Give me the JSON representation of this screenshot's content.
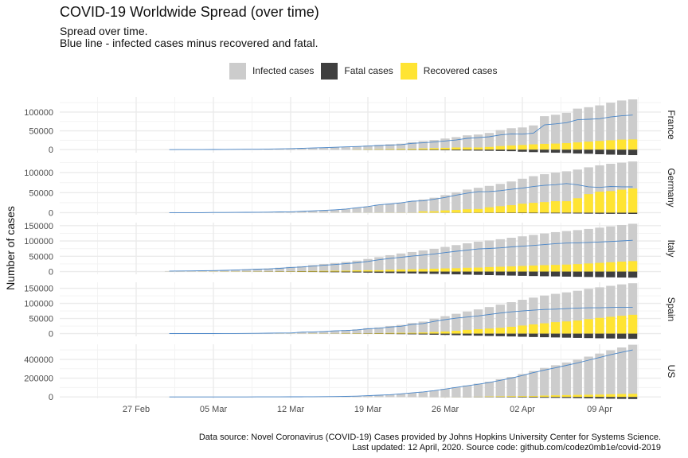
{
  "title": "COVID-19 Worldwide Spread (over time)",
  "subtitle_lines": [
    "Spread over time.",
    "Blue line - infected cases minus recovered and fatal."
  ],
  "caption_lines": [
    "Data source: Novel Coronavirus (COVID-19) Cases provided by Johns Hopkins University Center for Systems Science.",
    "Last updated: 12 April, 2020. Source code: github.com/codez0mb1e/covid-2019"
  ],
  "legend": [
    {
      "label": "Infected cases",
      "color": "#cccccc"
    },
    {
      "label": "Fatal cases",
      "color": "#3f3f3f"
    },
    {
      "label": "Recovered cases",
      "color": "#ffe433"
    }
  ],
  "colors": {
    "infected": "#cccccc",
    "fatal": "#3f3f3f",
    "recovered": "#ffe433",
    "active_line": "#4a86c8"
  },
  "chart_data": {
    "type": "bar",
    "ylabel": "Number of cases",
    "x_ticks": [
      "27 Feb",
      "05 Mar",
      "12 Mar",
      "19 Mar",
      "26 Mar",
      "02 Apr",
      "09 Apr"
    ],
    "x_tick_dates": [
      "2020-02-27",
      "2020-03-05",
      "2020-03-12",
      "2020-03-19",
      "2020-03-26",
      "2020-04-02",
      "2020-04-09"
    ],
    "dates": [
      "2020-03-01",
      "2020-03-02",
      "2020-03-03",
      "2020-03-04",
      "2020-03-05",
      "2020-03-06",
      "2020-03-07",
      "2020-03-08",
      "2020-03-09",
      "2020-03-10",
      "2020-03-11",
      "2020-03-12",
      "2020-03-13",
      "2020-03-14",
      "2020-03-15",
      "2020-03-16",
      "2020-03-17",
      "2020-03-18",
      "2020-03-19",
      "2020-03-20",
      "2020-03-21",
      "2020-03-22",
      "2020-03-23",
      "2020-03-24",
      "2020-03-25",
      "2020-03-26",
      "2020-03-27",
      "2020-03-28",
      "2020-03-29",
      "2020-03-30",
      "2020-03-31",
      "2020-04-01",
      "2020-04-02",
      "2020-04-03",
      "2020-04-04",
      "2020-04-05",
      "2020-04-06",
      "2020-04-07",
      "2020-04-08",
      "2020-04-09",
      "2020-04-10",
      "2020-04-11",
      "2020-04-12"
    ],
    "facets": [
      {
        "name": "France",
        "y_ticks": [
          0,
          50000,
          100000
        ],
        "ylim": [
          -8000,
          140000
        ],
        "infected": [
          130,
          191,
          204,
          288,
          380,
          656,
          957,
          1130,
          1212,
          1784,
          2284,
          2900,
          3670,
          4480,
          5420,
          6630,
          7660,
          9060,
          10900,
          12600,
          14400,
          16000,
          19900,
          22600,
          25600,
          29600,
          33400,
          38100,
          40200,
          44500,
          52100,
          57000,
          59100,
          64400,
          89000,
          92800,
          98000,
          109100,
          112900,
          117700,
          125000,
          130700,
          133700
        ],
        "recovered": [
          0,
          0,
          0,
          0,
          0,
          0,
          0,
          0,
          0,
          0,
          0,
          0,
          0,
          0,
          0,
          0,
          0,
          600,
          1000,
          1200,
          1600,
          2000,
          2200,
          3300,
          4000,
          4900,
          5700,
          5700,
          5700,
          7200,
          9400,
          11100,
          12400,
          14100,
          15400,
          16200,
          17400,
          19300,
          21300,
          23200,
          24900,
          26700,
          27200
        ],
        "fatal": [
          2,
          2,
          3,
          4,
          6,
          9,
          11,
          19,
          19,
          33,
          48,
          61,
          79,
          91,
          91,
          148,
          148,
          244,
          372,
          450,
          562,
          674,
          860,
          1100,
          1331,
          1696,
          1995,
          2314,
          2606,
          3024,
          3523,
          4043,
          5398,
          6520,
          7574,
          8093,
          8926,
          10343,
          10887,
          12228,
          13215,
          13851,
          14412
        ],
        "active": [
          128,
          189,
          201,
          284,
          374,
          647,
          946,
          1111,
          1193,
          1751,
          2236,
          2839,
          3591,
          4389,
          5329,
          6482,
          7512,
          8216,
          9528,
          10950,
          12238,
          13326,
          16840,
          18200,
          20269,
          23004,
          25705,
          30086,
          31894,
          34276,
          39177,
          41857,
          41302,
          43780,
          66026,
          68507,
          71674,
          79457,
          80713,
          82272,
          86885,
          90149,
          92088
        ]
      },
      {
        "name": "Germany",
        "y_ticks": [
          0,
          50000,
          100000
        ],
        "ylim": [
          -5000,
          130000
        ],
        "infected": [
          130,
          159,
          196,
          262,
          482,
          670,
          799,
          1040,
          1176,
          1457,
          1908,
          2078,
          3675,
          4585,
          5795,
          7272,
          9257,
          12327,
          15320,
          19848,
          22213,
          24873,
          29056,
          32986,
          37323,
          43938,
          50871,
          57695,
          62095,
          66885,
          71808,
          77872,
          84794,
          91159,
          96092,
          100123,
          103374,
          107663,
          113296,
          118181,
          122171,
          124908,
          127854
        ],
        "recovered": [
          16,
          16,
          16,
          16,
          16,
          17,
          18,
          18,
          18,
          25,
          25,
          25,
          46,
          46,
          46,
          67,
          67,
          105,
          113,
          180,
          233,
          266,
          266,
          3243,
          3547,
          5673,
          6658,
          8481,
          9211,
          13500,
          16100,
          18700,
          22440,
          24575,
          26400,
          28700,
          28700,
          36081,
          46300,
          52407,
          53913,
          57400,
          60300
        ],
        "fatal": [
          0,
          0,
          0,
          0,
          0,
          0,
          0,
          0,
          2,
          2,
          3,
          3,
          7,
          9,
          11,
          17,
          24,
          28,
          44,
          67,
          84,
          94,
          123,
          157,
          206,
          267,
          342,
          433,
          533,
          645,
          775,
          920,
          1107,
          1275,
          1444,
          1584,
          1810,
          2016,
          2349,
          2607,
          2767,
          2736,
          3022
        ],
        "active": [
          114,
          143,
          180,
          246,
          466,
          653,
          781,
          1022,
          1156,
          1430,
          1880,
          2050,
          3622,
          4530,
          5738,
          7188,
          9166,
          12194,
          15163,
          19601,
          21896,
          24513,
          28667,
          29586,
          33570,
          37998,
          43871,
          48781,
          52351,
          52740,
          54933,
          58252,
          61247,
          65309,
          68248,
          69839,
          72864,
          69566,
          64647,
          63172,
          65491,
          64772,
          64532
        ]
      },
      {
        "name": "Italy",
        "y_ticks": [
          0,
          50000,
          100000,
          150000
        ],
        "ylim": [
          -9000,
          160000
        ],
        "infected": [
          1694,
          2036,
          2502,
          3089,
          3858,
          4636,
          5883,
          7375,
          9172,
          10149,
          12462,
          15113,
          17660,
          21157,
          24747,
          27980,
          31506,
          35713,
          41035,
          47021,
          53578,
          59138,
          63927,
          69176,
          74386,
          80589,
          86498,
          92472,
          97689,
          101739,
          105792,
          110574,
          115242,
          119827,
          124632,
          128948,
          132547,
          135586,
          139422,
          143626,
          147577,
          152271,
          156363
        ],
        "recovered": [
          83,
          149,
          160,
          276,
          414,
          523,
          589,
          622,
          724,
          724,
          1045,
          1045,
          1439,
          1966,
          2335,
          2749,
          2941,
          4025,
          4440,
          4440,
          6072,
          7024,
          7432,
          8326,
          9362,
          10361,
          10950,
          12384,
          13030,
          14620,
          15729,
          16847,
          18278,
          19758,
          20996,
          21815,
          22837,
          24392,
          26491,
          28470,
          30455,
          32534,
          34211
        ],
        "fatal": [
          34,
          52,
          79,
          107,
          148,
          197,
          233,
          366,
          463,
          631,
          827,
          827,
          1266,
          1441,
          1809,
          2158,
          2503,
          2978,
          3405,
          4032,
          4825,
          5476,
          6077,
          6820,
          7503,
          8215,
          9134,
          10023,
          10779,
          11591,
          12428,
          13155,
          13915,
          14681,
          15362,
          15887,
          16523,
          17127,
          17669,
          18279,
          18849,
          19468,
          19899
        ],
        "active": [
          1577,
          1835,
          2263,
          2706,
          3296,
          3916,
          5061,
          6387,
          7985,
          8794,
          10590,
          13241,
          14955,
          17750,
          20603,
          23073,
          26062,
          28710,
          33190,
          38549,
          42681,
          46638,
          50418,
          54030,
          57521,
          62013,
          66414,
          70065,
          73880,
          75528,
          77635,
          80572,
          83049,
          85388,
          88274,
          91246,
          93187,
          94067,
          95262,
          96877,
          98273,
          100269,
          102253
        ]
      },
      {
        "name": "Spain",
        "y_ticks": [
          0,
          50000,
          100000,
          150000
        ],
        "ylim": [
          -9000,
          170000
        ],
        "infected": [
          84,
          120,
          165,
          222,
          259,
          400,
          500,
          673,
          1073,
          1695,
          2277,
          2277,
          5232,
          6391,
          7798,
          9942,
          11748,
          13910,
          17963,
          20410,
          25374,
          28768,
          35136,
          39885,
          49515,
          57786,
          65719,
          73235,
          80110,
          87956,
          95923,
          104118,
          112065,
          119199,
          126168,
          131646,
          136675,
          141942,
          148220,
          153222,
          158273,
          163027,
          166831
        ],
        "recovered": [
          2,
          2,
          2,
          2,
          2,
          2,
          30,
          30,
          32,
          32,
          183,
          183,
          193,
          517,
          517,
          530,
          1028,
          1081,
          1107,
          1588,
          2125,
          2575,
          2575,
          3794,
          5367,
          7015,
          9357,
          12285,
          14709,
          16780,
          19259,
          22647,
          26743,
          30513,
          34219,
          38080,
          40437,
          43208,
          48021,
          52165,
          55668,
          59109,
          62391
        ],
        "fatal": [
          0,
          0,
          1,
          2,
          3,
          5,
          10,
          17,
          28,
          35,
          54,
          55,
          133,
          195,
          289,
          342,
          533,
          623,
          830,
          1043,
          1375,
          1772,
          2311,
          2808,
          3647,
          4365,
          5138,
          5982,
          6803,
          7716,
          8464,
          9387,
          10348,
          11198,
          11947,
          12641,
          13341,
          14045,
          14792,
          15447,
          16081,
          16606,
          17209
        ],
        "active": [
          82,
          118,
          162,
          218,
          254,
          393,
          460,
          626,
          1013,
          1628,
          2040,
          2039,
          4906,
          5679,
          6992,
          9070,
          10187,
          12206,
          16026,
          17779,
          21874,
          24421,
          30250,
          33283,
          40501,
          46406,
          51224,
          54968,
          58598,
          63460,
          68200,
          72084,
          74974,
          77488,
          80002,
          80925,
          82897,
          84689,
          85407,
          85610,
          86524,
          87312,
          87231
        ]
      },
      {
        "name": "US",
        "y_ticks": [
          0,
          200000,
          400000
        ],
        "ylim": [
          -15000,
          560000
        ],
        "infected": [
          75,
          100,
          124,
          158,
          221,
          319,
          435,
          541,
          704,
          994,
          1301,
          1630,
          2183,
          2770,
          3613,
          4596,
          6344,
          9197,
          13779,
          19367,
          24192,
          33592,
          43781,
          54856,
          68211,
          85435,
          104126,
          121478,
          140886,
          161807,
          188172,
          213372,
          243453,
          275586,
          308850,
          337072,
          366667,
          396223,
          429052,
          461437,
          496535,
          526396,
          555313
        ],
        "recovered": [
          7,
          7,
          7,
          7,
          7,
          8,
          8,
          8,
          8,
          8,
          8,
          8,
          8,
          8,
          12,
          17,
          17,
          105,
          121,
          147,
          176,
          178,
          178,
          348,
          361,
          681,
          869,
          1072,
          2665,
          5644,
          7024,
          8474,
          9001,
          9707,
          14652,
          17448,
          19581,
          21763,
          23559,
          25410,
          28790,
          31270,
          32988
        ],
        "fatal": [
          1,
          6,
          7,
          11,
          12,
          14,
          17,
          21,
          22,
          28,
          36,
          40,
          47,
          54,
          63,
          85,
          108,
          118,
          200,
          244,
          307,
          427,
          552,
          706,
          942,
          1209,
          1581,
          2026,
          2467,
          2978,
          3873,
          4757,
          5926,
          7087,
          8407,
          9619,
          10783,
          12722,
          14695,
          16478,
          18586,
          20463,
          22020
        ],
        "active": [
          67,
          87,
          110,
          140,
          202,
          297,
          410,
          512,
          674,
          958,
          1257,
          1582,
          2128,
          2708,
          3538,
          4494,
          6219,
          8974,
          13458,
          18976,
          23709,
          32987,
          43051,
          53802,
          66908,
          83545,
          101676,
          118380,
          135754,
          153185,
          177275,
          200141,
          228526,
          258792,
          285791,
          310005,
          336303,
          361738,
          390798,
          419549,
          449159,
          474663,
          500305
        ]
      }
    ]
  }
}
